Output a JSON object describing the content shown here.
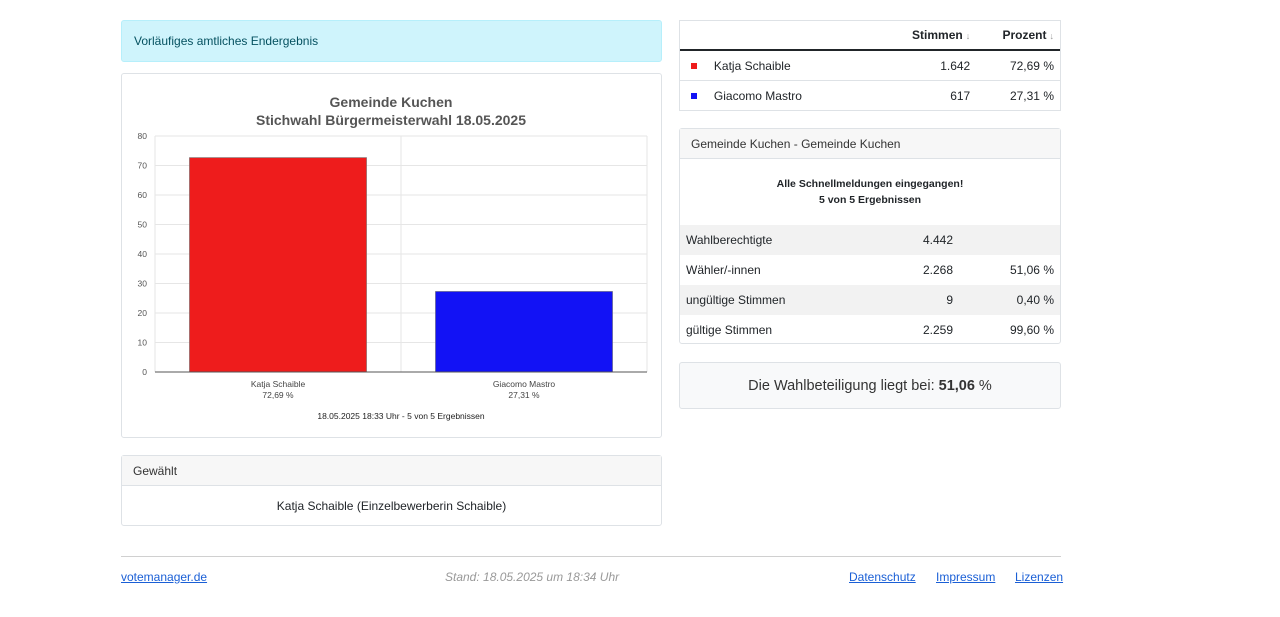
{
  "alert_text": "Vorläufiges amtliches Endergebnis",
  "chart_data": {
    "type": "bar",
    "title_line1": "Gemeinde Kuchen",
    "title_line2": "Stichwahl Bürgermeisterwahl 18.05.2025",
    "categories": [
      "Katja Schaible",
      "Giacomo Mastro"
    ],
    "category_sublabels": [
      "72,69 %",
      "27,31 %"
    ],
    "values": [
      72.69,
      27.31
    ],
    "colors": [
      "#ee1c1c",
      "#1212f5"
    ],
    "ylim": [
      0,
      80
    ],
    "yticks": [
      0,
      10,
      20,
      30,
      40,
      50,
      60,
      70,
      80
    ],
    "grid": true,
    "footnote": "18.05.2025 18:33 Uhr - 5 von 5 Ergebnissen"
  },
  "gewaehlt": {
    "header": "Gewählt",
    "value": "Katja Schaible (Einzelbewerberin Schaible)"
  },
  "results_table": {
    "col_stimmen": "Stimmen",
    "col_prozent": "Prozent",
    "sort_icon": "↓",
    "rows": [
      {
        "name": "Katja Schaible",
        "stimmen": "1.642",
        "prozent": "72,69 %",
        "color": "#ee1c1c"
      },
      {
        "name": "Giacomo Mastro",
        "stimmen": "617",
        "prozent": "27,31 %",
        "color": "#1212f5"
      }
    ]
  },
  "gemeinde": {
    "header": "Gemeinde Kuchen - Gemeinde Kuchen",
    "status_line1": "Alle Schnellmeldungen eingegangen!",
    "status_line2": "5 von 5 Ergebnissen",
    "rows": [
      {
        "label": "Wahlberechtigte",
        "value": "4.442",
        "pct": ""
      },
      {
        "label": "Wähler/-innen",
        "value": "2.268",
        "pct": "51,06 %"
      },
      {
        "label": "ungültige Stimmen",
        "value": "9",
        "pct": "0,40 %"
      },
      {
        "label": "gültige Stimmen",
        "value": "2.259",
        "pct": "99,60 %"
      }
    ]
  },
  "turnout": {
    "prefix": "Die Wahlbeteiligung liegt bei:",
    "value": "51,06",
    "unit": "%"
  },
  "footer": {
    "left_link": "votemanager.de",
    "stand": "Stand: 18.05.2025 um 18:34 Uhr",
    "links": [
      "Datenschutz",
      "Impressum",
      "Lizenzen"
    ]
  }
}
